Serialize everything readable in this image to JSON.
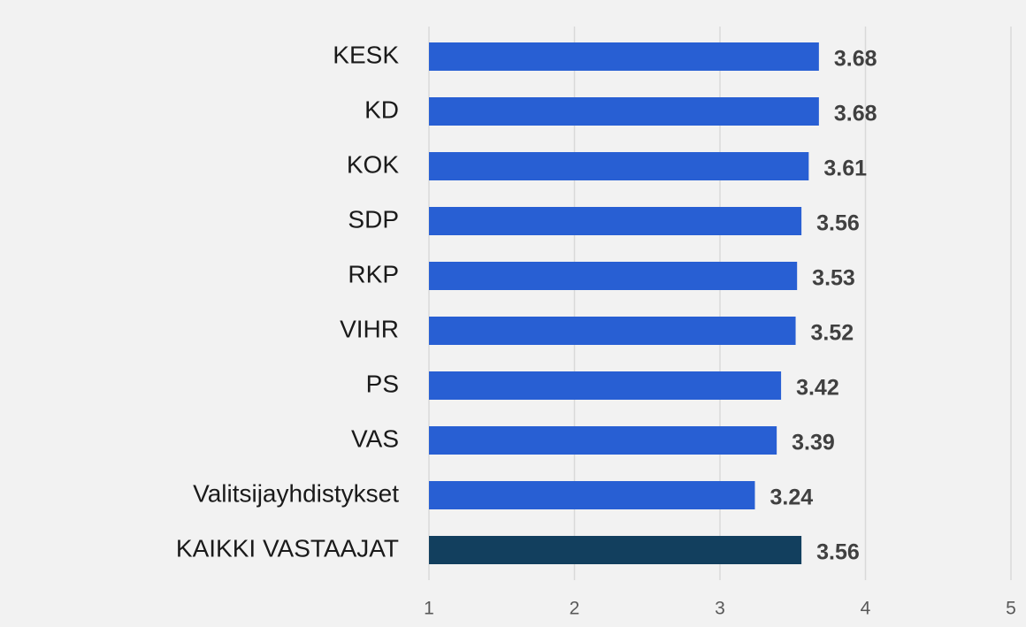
{
  "chart_data": {
    "type": "bar",
    "orientation": "horizontal",
    "categories": [
      "KESK",
      "KD",
      "KOK",
      "SDP",
      "RKP",
      "VIHR",
      "PS",
      "VAS",
      "Valitsijayhdistykset",
      "KAIKKI VASTAAJAT"
    ],
    "values": [
      3.68,
      3.68,
      3.61,
      3.56,
      3.53,
      3.52,
      3.42,
      3.39,
      3.24,
      3.56
    ],
    "colors": [
      "#285fd3",
      "#285fd3",
      "#285fd3",
      "#285fd3",
      "#285fd3",
      "#285fd3",
      "#285fd3",
      "#285fd3",
      "#285fd3",
      "#123f5e"
    ],
    "xlim": [
      1,
      5
    ],
    "xticks": [
      1,
      2,
      3,
      4,
      5
    ],
    "grid": true
  }
}
